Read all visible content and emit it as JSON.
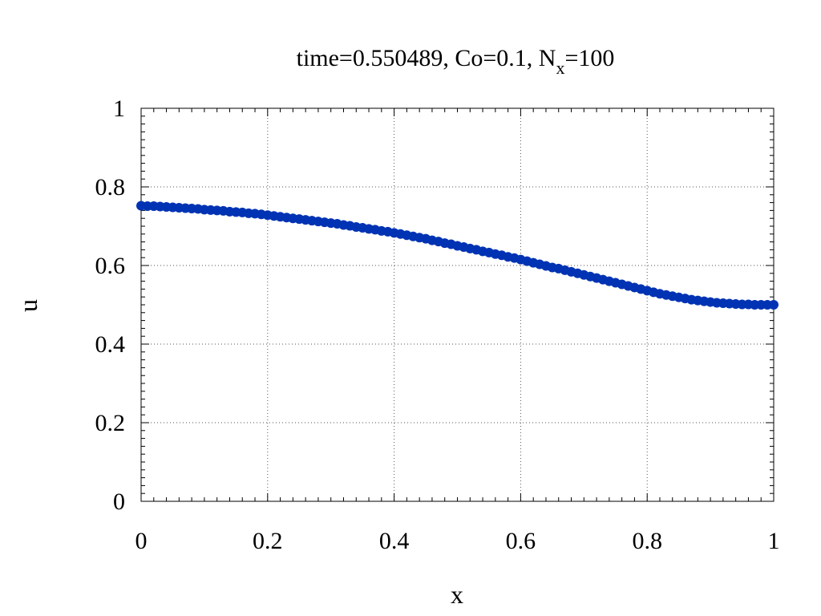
{
  "chart_data": {
    "type": "scatter",
    "title": {
      "prefix": "time=0.550489, Co=0.1, N",
      "subscript": "x",
      "suffix": "=100"
    },
    "xlabel": "x",
    "ylabel": "u",
    "xlim": [
      0,
      1
    ],
    "ylim": [
      0,
      1
    ],
    "grid": true,
    "x_ticks": [
      "0",
      "0.2",
      "0.4",
      "0.6",
      "0.8",
      "1"
    ],
    "y_ticks": [
      "0",
      "0.2",
      "0.4",
      "0.6",
      "0.8",
      "1"
    ],
    "x_tick_values": [
      0,
      0.2,
      0.4,
      0.6,
      0.8,
      1
    ],
    "y_tick_values": [
      0,
      0.2,
      0.4,
      0.6,
      0.8,
      1
    ],
    "series": [
      {
        "color": "#0033b3",
        "x": [
          0.0,
          0.01,
          0.02,
          0.03,
          0.04,
          0.05,
          0.06,
          0.07,
          0.08,
          0.09,
          0.1,
          0.11,
          0.12,
          0.13,
          0.14,
          0.15,
          0.16,
          0.17,
          0.18,
          0.19,
          0.2,
          0.21,
          0.22,
          0.23,
          0.24,
          0.25,
          0.26,
          0.27,
          0.28,
          0.29,
          0.3,
          0.31,
          0.32,
          0.33,
          0.34,
          0.35,
          0.36,
          0.37,
          0.38,
          0.39,
          0.4,
          0.41,
          0.42,
          0.43,
          0.44,
          0.45,
          0.46,
          0.47,
          0.48,
          0.49,
          0.5,
          0.51,
          0.52,
          0.53,
          0.54,
          0.55,
          0.56,
          0.57,
          0.58,
          0.59,
          0.6,
          0.61,
          0.62,
          0.63,
          0.64,
          0.65,
          0.66,
          0.67,
          0.68,
          0.69,
          0.7,
          0.71,
          0.72,
          0.73,
          0.74,
          0.75,
          0.76,
          0.77,
          0.78,
          0.79,
          0.8,
          0.81,
          0.82,
          0.83,
          0.84,
          0.85,
          0.86,
          0.87,
          0.88,
          0.89,
          0.9,
          0.91,
          0.92,
          0.93,
          0.94,
          0.95,
          0.96,
          0.97,
          0.98,
          0.99,
          1.0
        ],
        "y": [
          0.752,
          0.751,
          0.751,
          0.75,
          0.749,
          0.748,
          0.747,
          0.746,
          0.745,
          0.744,
          0.742,
          0.741,
          0.74,
          0.739,
          0.737,
          0.736,
          0.735,
          0.733,
          0.732,
          0.73,
          0.728,
          0.726,
          0.724,
          0.722,
          0.72,
          0.718,
          0.716,
          0.714,
          0.712,
          0.71,
          0.708,
          0.706,
          0.703,
          0.701,
          0.698,
          0.696,
          0.693,
          0.691,
          0.688,
          0.686,
          0.683,
          0.68,
          0.677,
          0.674,
          0.671,
          0.668,
          0.664,
          0.661,
          0.657,
          0.654,
          0.65,
          0.647,
          0.643,
          0.64,
          0.636,
          0.633,
          0.629,
          0.626,
          0.622,
          0.619,
          0.615,
          0.611,
          0.607,
          0.603,
          0.599,
          0.595,
          0.592,
          0.588,
          0.584,
          0.58,
          0.576,
          0.572,
          0.568,
          0.564,
          0.56,
          0.556,
          0.552,
          0.548,
          0.544,
          0.54,
          0.536,
          0.532,
          0.528,
          0.525,
          0.522,
          0.519,
          0.516,
          0.513,
          0.511,
          0.509,
          0.507,
          0.505,
          0.504,
          0.503,
          0.502,
          0.501,
          0.501,
          0.5,
          0.5,
          0.5,
          0.5
        ]
      }
    ]
  }
}
